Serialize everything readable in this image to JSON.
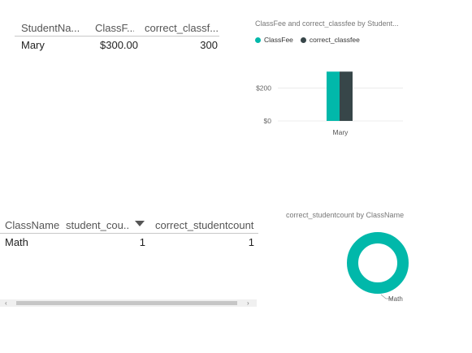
{
  "table1": {
    "headers": [
      "StudentNa...",
      "ClassF...",
      "correct_classf..."
    ],
    "rows": [
      [
        "Mary",
        "$300.00",
        "300"
      ]
    ]
  },
  "table2": {
    "headers": [
      "ClassName",
      "student_cou...",
      "correct_studentcount"
    ],
    "rows": [
      [
        "Math",
        "1",
        "1"
      ]
    ],
    "sort_icon": "sort-desc-icon"
  },
  "scrollbar": {
    "left_arrow": "‹",
    "right_arrow": "›"
  },
  "chart_data": [
    {
      "type": "bar",
      "title": "ClassFee and correct_classfee by Student...",
      "categories": [
        "Mary"
      ],
      "series": [
        {
          "name": "ClassFee",
          "values": [
            300
          ],
          "color": "#01B8AA"
        },
        {
          "name": "correct_classfee",
          "values": [
            300
          ],
          "color": "#374649"
        }
      ],
      "y_ticks": [
        "$0",
        "$200"
      ],
      "ylim": [
        0,
        400
      ],
      "legend": "top-left",
      "grid": true
    },
    {
      "type": "pie",
      "title": "correct_studentcount by ClassName",
      "categories": [
        "Math"
      ],
      "values": [
        1
      ],
      "color": "#01B8AA",
      "donut": true
    }
  ]
}
